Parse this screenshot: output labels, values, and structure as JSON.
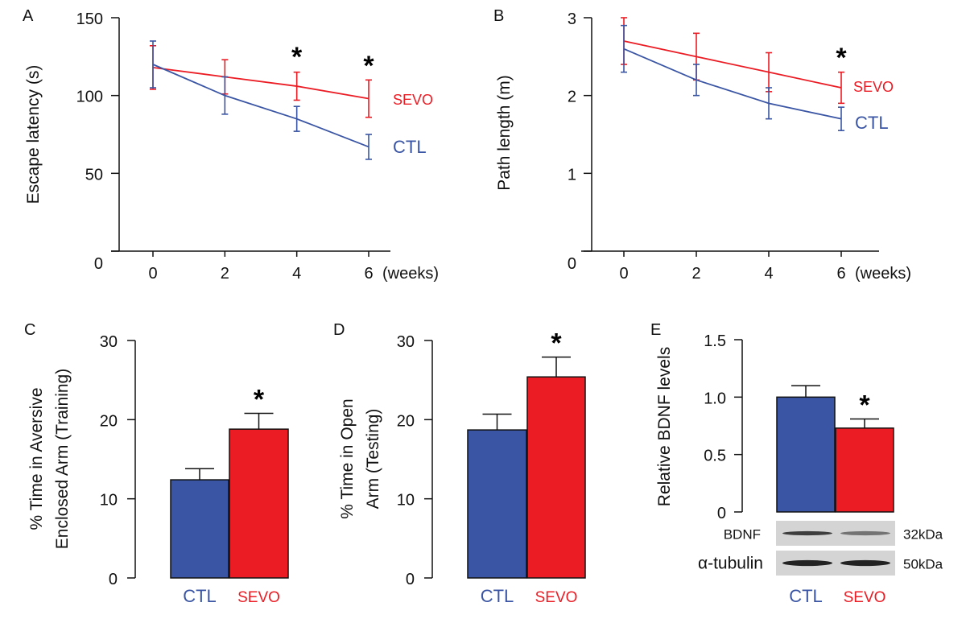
{
  "colors": {
    "CTL": "#3a55a4",
    "SEVO": "#ec1c24"
  },
  "chart_data": [
    {
      "panel": "A",
      "type": "line",
      "ylabel": "Escape latency (s)",
      "xlabel": "(weeks)",
      "x": [
        0,
        2,
        4,
        6
      ],
      "x_ticks": [
        "0",
        "2",
        "4",
        "6"
      ],
      "ylim": [
        0,
        150
      ],
      "y_ticks": [
        "0",
        "50",
        "100",
        "150"
      ],
      "series": [
        {
          "name": "SEVO",
          "values": [
            118,
            112,
            106,
            98
          ],
          "errors": [
            14,
            11,
            9,
            12
          ]
        },
        {
          "name": "CTL",
          "values": [
            120,
            100,
            85,
            67
          ],
          "errors": [
            15,
            12,
            8,
            8
          ]
        }
      ],
      "significance": [
        {
          "x": 4,
          "label": "*"
        },
        {
          "x": 6,
          "label": "*"
        }
      ]
    },
    {
      "panel": "B",
      "type": "line",
      "ylabel": "Path length (m)",
      "xlabel": "(weeks)",
      "x": [
        0,
        2,
        4,
        6
      ],
      "x_ticks": [
        "0",
        "2",
        "4",
        "6"
      ],
      "ylim": [
        0,
        3
      ],
      "y_ticks": [
        "0",
        "1",
        "2",
        "3"
      ],
      "series": [
        {
          "name": "SEVO",
          "values": [
            2.7,
            2.5,
            2.3,
            2.1
          ],
          "errors": [
            0.3,
            0.3,
            0.25,
            0.2
          ]
        },
        {
          "name": "CTL",
          "values": [
            2.6,
            2.2,
            1.9,
            1.7
          ],
          "errors": [
            0.3,
            0.2,
            0.2,
            0.15
          ]
        }
      ],
      "significance": [
        {
          "x": 6,
          "label": "*"
        }
      ]
    },
    {
      "panel": "C",
      "type": "bar",
      "ylabel_lines": [
        "% Time in Aversive",
        "Enclosed Arm (Training)"
      ],
      "categories": [
        "CTL",
        "SEVO"
      ],
      "values": [
        12.4,
        18.8
      ],
      "errors": [
        1.4,
        2.0
      ],
      "ylim": [
        0,
        30
      ],
      "y_ticks": [
        "0",
        "10",
        "20",
        "30"
      ],
      "significance": [
        {
          "category": "SEVO",
          "label": "*"
        }
      ]
    },
    {
      "panel": "D",
      "type": "bar",
      "ylabel_lines": [
        "% Time in Open",
        "Arm (Testing)"
      ],
      "categories": [
        "CTL",
        "SEVO"
      ],
      "values": [
        18.7,
        25.4
      ],
      "errors": [
        2.0,
        2.5
      ],
      "ylim": [
        0,
        30
      ],
      "y_ticks": [
        "0",
        "10",
        "20",
        "30"
      ],
      "significance": [
        {
          "category": "SEVO",
          "label": "*"
        }
      ]
    },
    {
      "panel": "E",
      "type": "bar",
      "ylabel_lines": [
        "Relative BDNF levels"
      ],
      "categories": [
        "CTL",
        "SEVO"
      ],
      "values": [
        1.0,
        0.73
      ],
      "errors": [
        0.1,
        0.08
      ],
      "ylim": [
        0,
        1.5
      ],
      "y_ticks": [
        "0",
        "0.5",
        "1.0",
        "1.5"
      ],
      "significance": [
        {
          "category": "SEVO",
          "label": "*"
        }
      ],
      "blot": {
        "rows": [
          {
            "label": "BDNF",
            "size": "32kDa",
            "intensity": [
              0.85,
              0.55
            ]
          },
          {
            "label": "α-tubulin",
            "size": "50kDa",
            "intensity": [
              1.0,
              1.0
            ]
          }
        ]
      }
    }
  ]
}
